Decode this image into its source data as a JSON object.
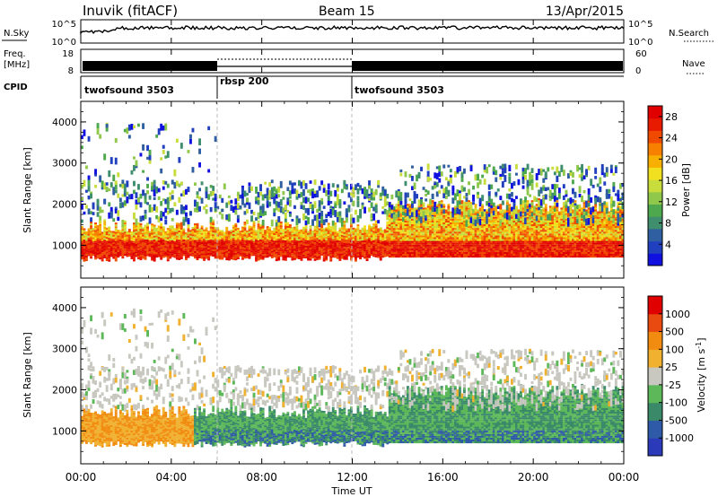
{
  "header": {
    "title": "Inuvik (fitACF)",
    "beam": "Beam 15",
    "date": "13/Apr/2015"
  },
  "panels": {
    "nsky": {
      "left_label": "N.Sky",
      "left_ticks": [
        "10^5",
        "10^0"
      ],
      "right_ticks": [
        "10^5",
        "10^0"
      ],
      "right_label": "N.Search"
    },
    "freq": {
      "left_label_line1": "Freq.",
      "left_label_line2": "[MHz]",
      "left_ticks": [
        "18",
        "8"
      ],
      "right_ticks": [
        "60",
        "0"
      ],
      "right_label": "Nave"
    },
    "cpid": {
      "label": "CPID",
      "segments": [
        {
          "name": "twofsound 3503",
          "start_hour": 0,
          "end_hour": 6
        },
        {
          "name": "rbsp 200",
          "start_hour": 6,
          "end_hour": 12
        },
        {
          "name": "twofsound 3503",
          "start_hour": 12,
          "end_hour": 24
        }
      ]
    }
  },
  "chart_data": [
    {
      "type": "heatmap",
      "name": "power",
      "ylabel": "Slant Range [km]",
      "y_ticks": [
        "1000",
        "2000",
        "3000",
        "4000"
      ],
      "ylim": [
        200,
        4500
      ],
      "x_range_hours": [
        0,
        24
      ],
      "colorbar": {
        "label": "Power [dB]",
        "tick_labels": [
          "4",
          "8",
          "12",
          "16",
          "20",
          "24",
          "28"
        ],
        "range": [
          0,
          30
        ],
        "colors": [
          "#1010e0",
          "#2040c0",
          "#2f5fa0",
          "#3f8f6f",
          "#4ea84e",
          "#8fc84a",
          "#c8dc3c",
          "#f0e020",
          "#f8b000",
          "#f88000",
          "#f04a00",
          "#e81a00",
          "#e00000"
        ]
      }
    },
    {
      "type": "heatmap",
      "name": "velocity",
      "ylabel": "Slant Range [km]",
      "y_ticks": [
        "1000",
        "2000",
        "3000",
        "4000"
      ],
      "ylim": [
        200,
        4500
      ],
      "x_range_hours": [
        0,
        24
      ],
      "colorbar": {
        "label": "Velocity [m s",
        "label_exp": "-1",
        "label_close": "]",
        "tick_labels": [
          "1000",
          "500",
          "100",
          "25",
          "-25",
          "-100",
          "-500",
          "-1000"
        ],
        "colors": [
          "#2a3ab8",
          "#2f5aa8",
          "#3a8a6a",
          "#5db85a",
          "#c8c8c0",
          "#f0b030",
          "#f28c10",
          "#e84a10",
          "#e00000"
        ]
      }
    }
  ],
  "xaxis": {
    "label": "Time UT",
    "ticks": [
      "00:00",
      "04:00",
      "08:00",
      "12:00",
      "16:00",
      "20:00",
      "00:00"
    ]
  }
}
